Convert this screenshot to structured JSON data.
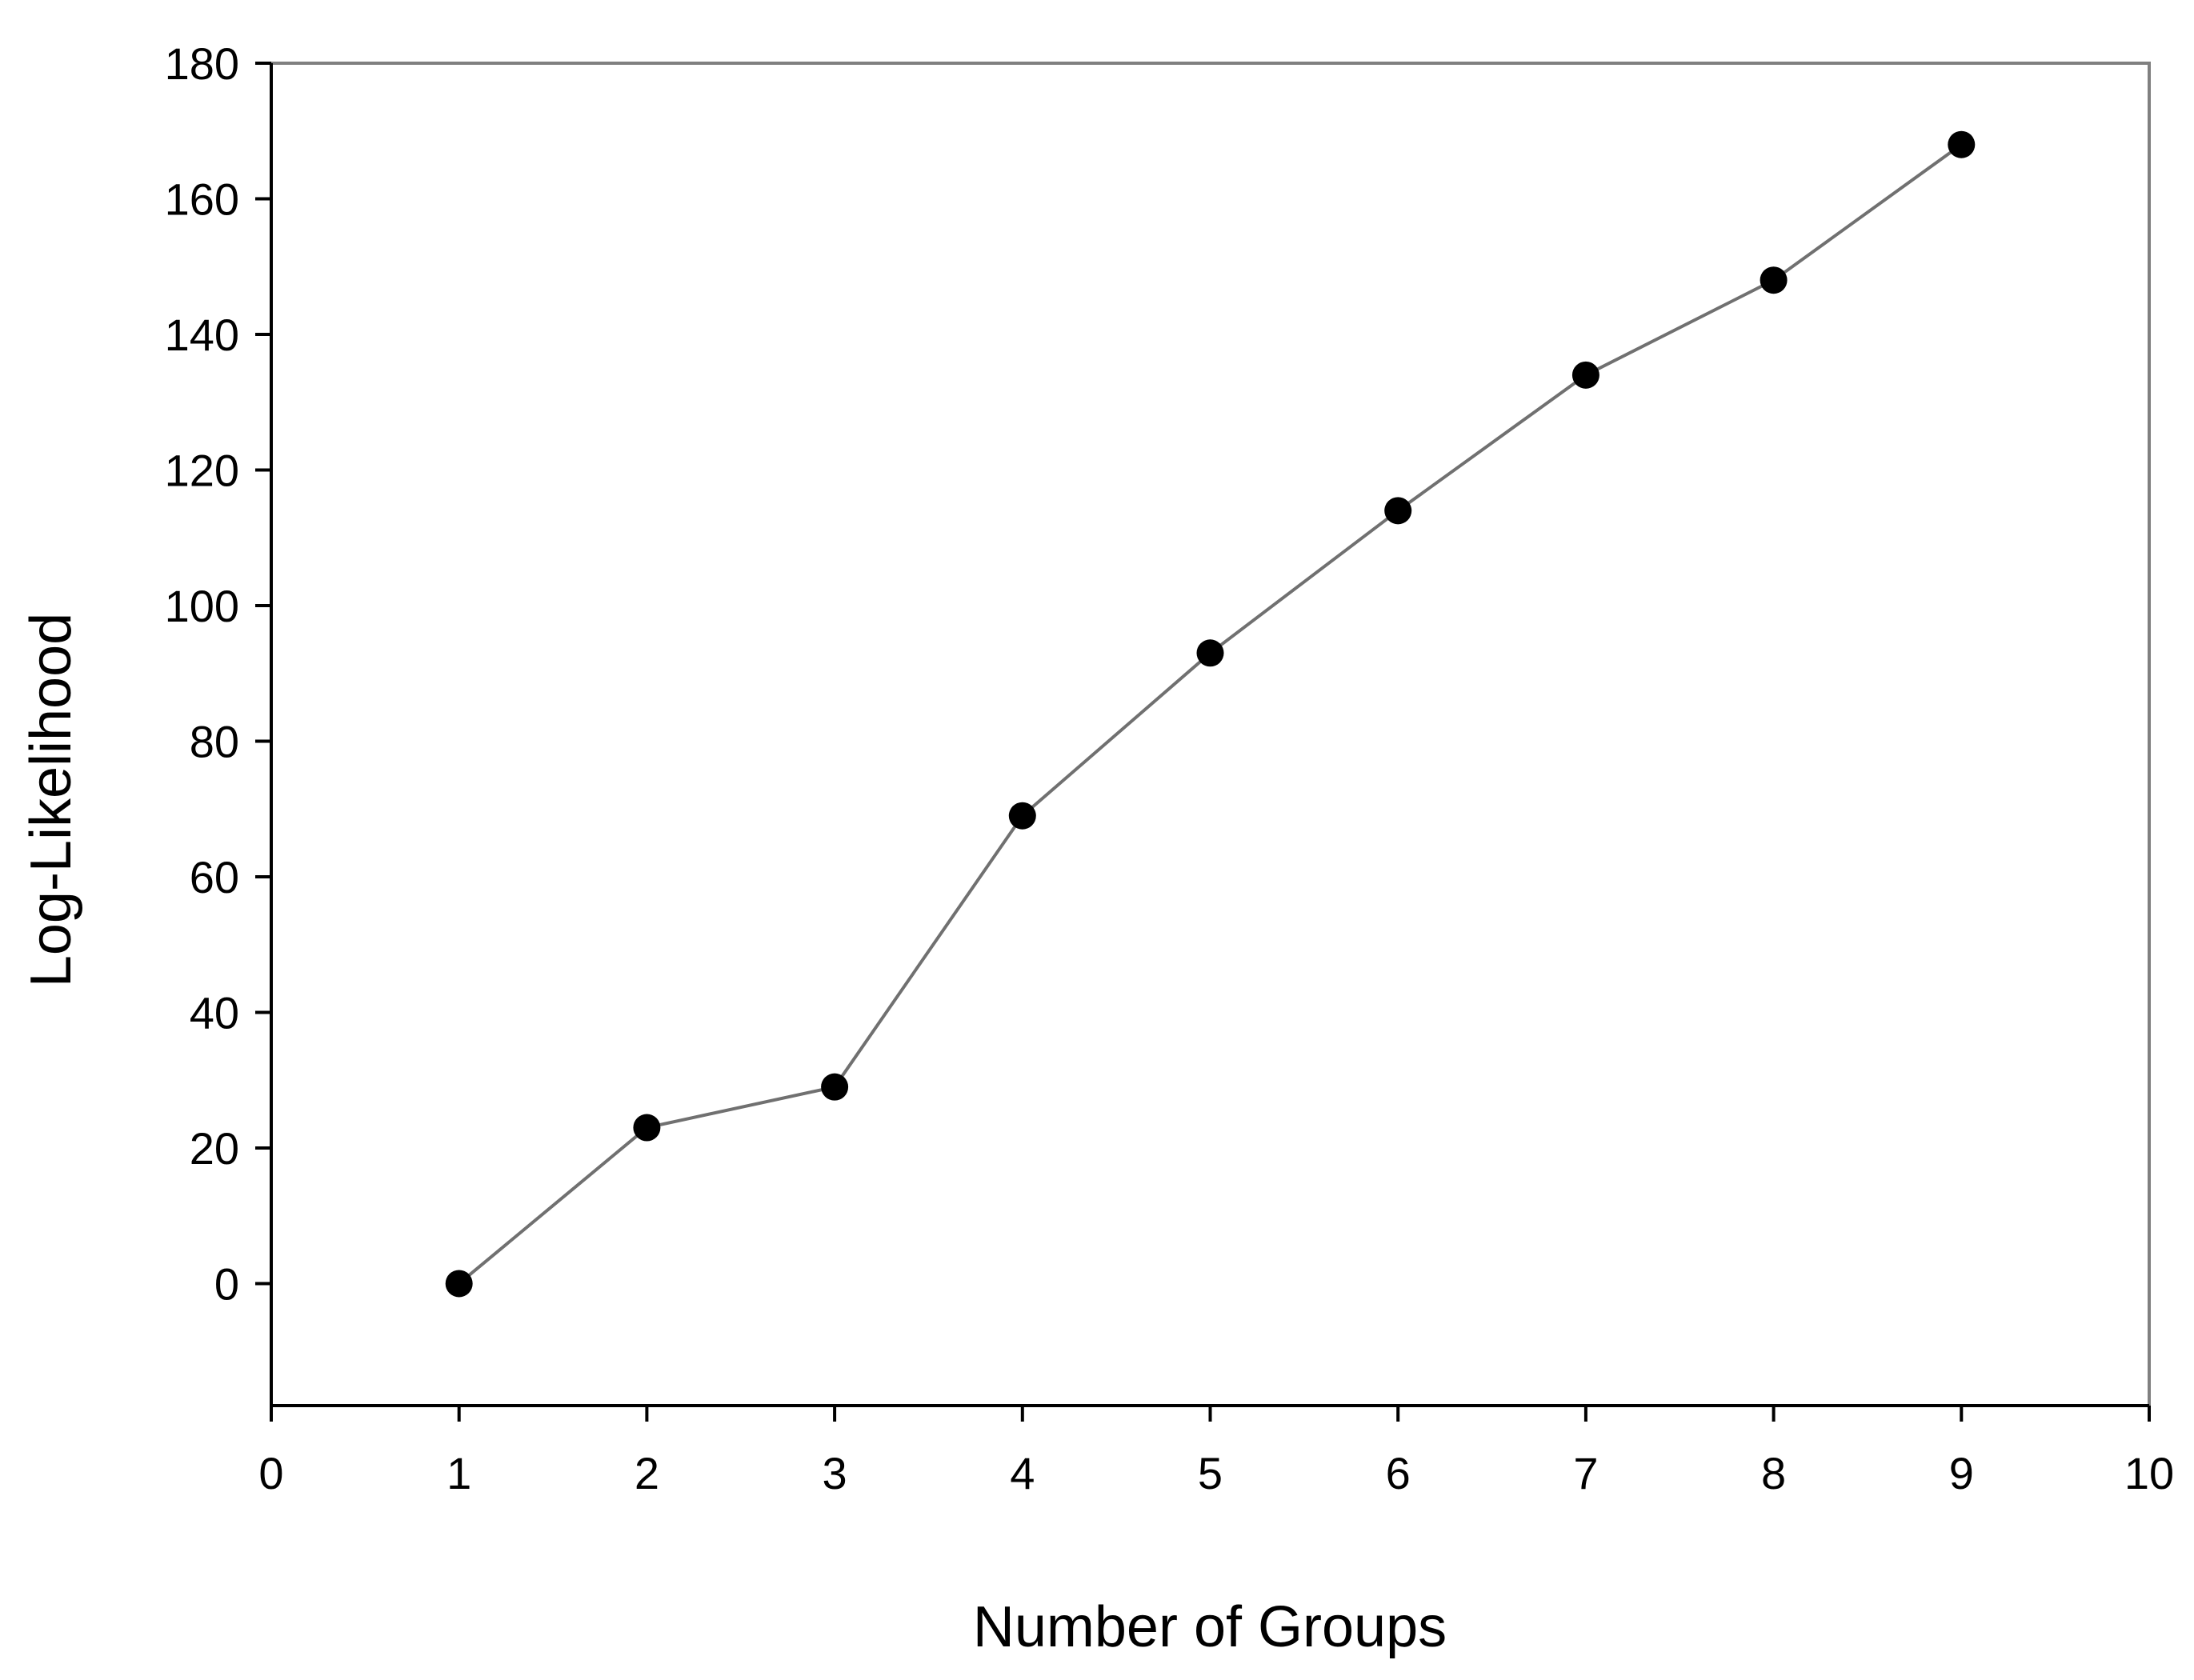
{
  "chart_data": {
    "type": "line",
    "title": "",
    "xlabel": "Number of Groups",
    "ylabel": "Log-Likelihood",
    "xlim": [
      0,
      10
    ],
    "ylim": [
      -18,
      180
    ],
    "x_ticks": [
      0,
      1,
      2,
      3,
      4,
      5,
      6,
      7,
      8,
      9,
      10
    ],
    "y_ticks": [
      0,
      20,
      40,
      60,
      80,
      100,
      120,
      140,
      160,
      180
    ],
    "grid": false,
    "series": [
      {
        "x": [
          1,
          2,
          3,
          4,
          5,
          6,
          7,
          8,
          9
        ],
        "values": [
          0,
          23,
          29,
          69,
          93,
          114,
          134,
          148,
          168
        ],
        "line_color": "#707070",
        "marker_color": "#000000",
        "marker": "circle"
      }
    ]
  }
}
